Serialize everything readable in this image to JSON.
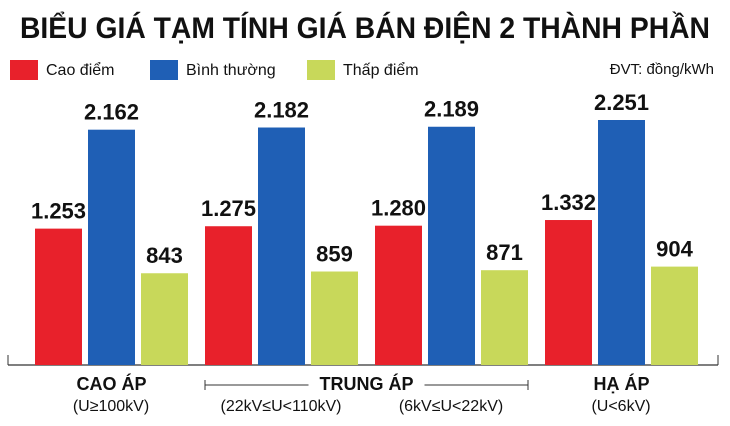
{
  "chart_data": {
    "type": "bar",
    "title": "BIỂU GIÁ TẠM TÍNH GIÁ BÁN ĐIỆN 2 THÀNH PHẦN",
    "unit_note": "ĐVT: đồng/kWh",
    "category_groups": [
      {
        "name": "CAO ÁP",
        "categories": [
          "(U≥100kV)"
        ]
      },
      {
        "name": "TRUNG ÁP",
        "categories": [
          "(22kV≤U<110kV)",
          "(6kV≤U<22kV)"
        ]
      },
      {
        "name": "HẠ ÁP",
        "categories": [
          "(U<6kV)"
        ]
      }
    ],
    "series": [
      {
        "name": "Cao điểm",
        "color": "#e8212b",
        "values": [
          1253,
          1275,
          1280,
          1332
        ],
        "value_labels": [
          "1.253",
          "1.275",
          "1.280",
          "1.332"
        ]
      },
      {
        "name": "Bình thường",
        "color": "#1f5fb5",
        "values": [
          2162,
          2182,
          2189,
          2251
        ],
        "value_labels": [
          "2.162",
          "2.182",
          "2.189",
          "2.251"
        ]
      },
      {
        "name": "Thấp điểm",
        "color": "#c8d85a",
        "values": [
          843,
          859,
          871,
          904
        ],
        "value_labels": [
          "843",
          "859",
          "871",
          "904"
        ]
      }
    ]
  }
}
